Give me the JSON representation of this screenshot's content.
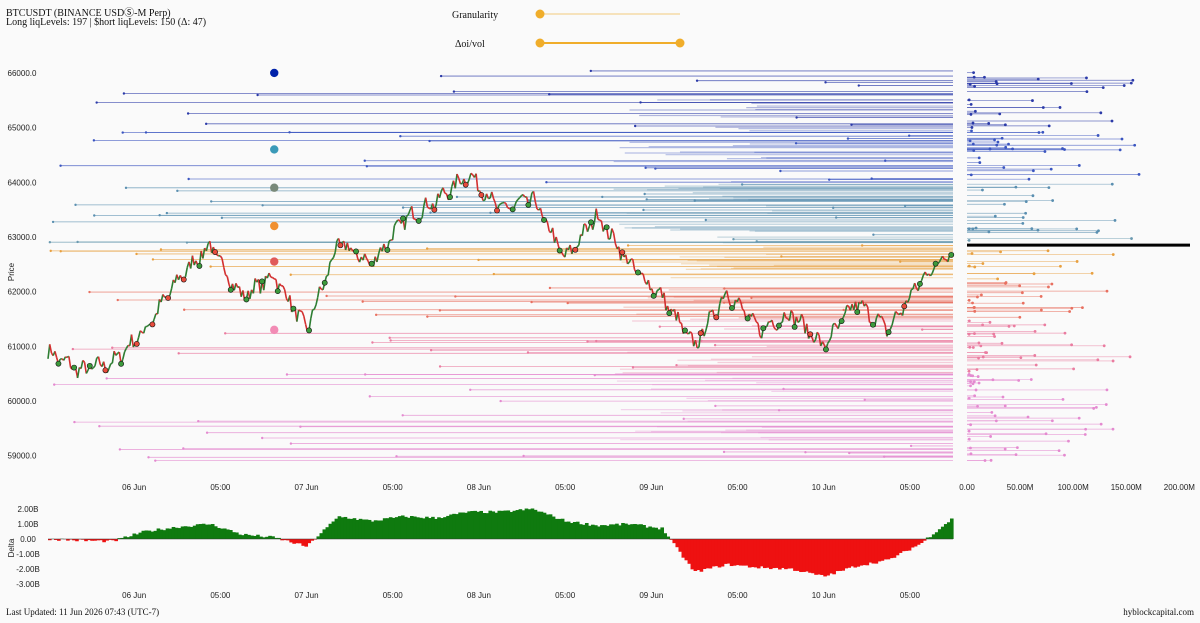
{
  "header": {
    "title": "BTCUSDT (BINANCE USDⓈ-M Perp)",
    "subtitle": "Long liqLevels: 197 | $hort liqLevels: 150 (Δ: 47)"
  },
  "controls": {
    "granularity_label": "Granularity",
    "granularity_value": 0.0,
    "oivol_label": "Δoi/vol",
    "oivol_range": [
      0.0,
      1.0
    ],
    "accent": "#f0ad2a"
  },
  "footer": {
    "last_updated": "Last Updated: 11 Jun 2026 07:43 (UTC-7)",
    "brand": "hyblockcapital.com"
  },
  "colors": {
    "up": "#2e7d32",
    "down": "#d32f2f",
    "delta_pos": "#0f7a0f",
    "delta_neg": "#ee1111",
    "short_liq": "#3344bb",
    "long_liq": "#e077b0",
    "current_price_line": "#000000"
  },
  "chart_data": [
    {
      "type": "line",
      "name": "price",
      "ylabel": "Price",
      "ylim": [
        58700,
        66200
      ],
      "y_ticks": [
        "66000.0",
        "65000.0",
        "64000.0",
        "63000.0",
        "62000.0",
        "61000.0",
        "60000.0",
        "59000.0"
      ],
      "x_ticks": [
        "06 Jun",
        "05:00",
        "07 Jun",
        "05:00",
        "08 Jun",
        "05:00",
        "09 Jun",
        "05:00",
        "10 Jun",
        "05:00"
      ],
      "x": [
        0,
        4,
        8,
        12,
        16,
        20,
        24,
        28,
        32,
        36,
        40,
        44,
        48,
        52,
        56,
        60,
        64,
        68,
        72,
        76,
        80,
        84,
        88,
        92,
        96,
        100,
        104,
        108,
        112
      ],
      "values": [
        60900,
        60550,
        60700,
        61300,
        62200,
        62850,
        61900,
        62300,
        61300,
        62900,
        62500,
        63300,
        63650,
        64150,
        63500,
        63700,
        62600,
        63400,
        62500,
        61900,
        61000,
        62000,
        61300,
        61600,
        61000,
        61800,
        61300,
        62200,
        62800
      ],
      "current_price": 62850
    },
    {
      "type": "bar",
      "name": "liquidation-levels",
      "x_ticks": [
        "0.00",
        "50.00M",
        "100.00M",
        "150.00M",
        "200.00M"
      ],
      "xlim": [
        0,
        210000000
      ]
    },
    {
      "type": "area",
      "name": "delta",
      "ylabel": "Delta",
      "ylim": [
        -3400000000,
        2400000000
      ],
      "y_ticks": [
        "2.00B",
        "1.00B",
        "0.00",
        "-1.00B",
        "-2.00B",
        "-3.00B"
      ],
      "x_ticks": [
        "06 Jun",
        "05:00",
        "07 Jun",
        "05:00",
        "08 Jun",
        "05:00",
        "09 Jun",
        "05:00",
        "10 Jun",
        "05:00"
      ],
      "x": [
        0,
        4,
        8,
        12,
        16,
        20,
        24,
        28,
        32,
        36,
        40,
        44,
        48,
        52,
        56,
        60,
        64,
        68,
        72,
        76,
        80,
        84,
        88,
        92,
        96,
        100,
        104,
        108,
        112
      ],
      "values": [
        0,
        -100000000,
        -150000000,
        500000000,
        800000000,
        1000000000,
        300000000,
        100000000,
        -500000000,
        1500000000,
        1200000000,
        1500000000,
        1400000000,
        1800000000,
        1800000000,
        2000000000,
        1200000000,
        900000000,
        1000000000,
        700000000,
        -2200000000,
        -1700000000,
        -1900000000,
        -2000000000,
        -2500000000,
        -1800000000,
        -1400000000,
        -300000000,
        1400000000
      ]
    }
  ]
}
